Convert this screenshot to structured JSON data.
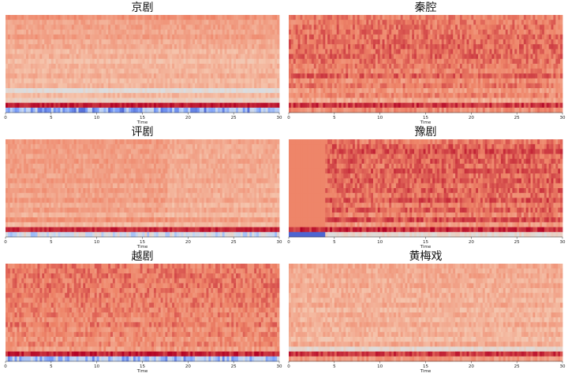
{
  "figure": {
    "colormap": "coolwarm",
    "colormap_stops": [
      "#3b4cc0",
      "#7b9ff9",
      "#c0d4f5",
      "#dddddd",
      "#f5c4ac",
      "#ee8468",
      "#b40426"
    ]
  },
  "chart_data": [
    {
      "type": "heatmap",
      "title": "京剧",
      "xlabel": "Time",
      "xlim": [
        0,
        30
      ],
      "xticks": [
        "0",
        "5",
        "10",
        "15",
        "20",
        "25",
        "30"
      ],
      "n_bands": 20,
      "band_base": [
        0.8,
        0.75,
        0.76,
        0.74,
        0.77,
        0.73,
        0.74,
        0.7,
        0.72,
        0.68,
        0.71,
        0.7,
        0.73,
        0.69,
        0.71,
        0.52,
        0.7,
        0.6,
        0.97,
        0.2
      ],
      "texture": 0.04
    },
    {
      "type": "heatmap",
      "title": "秦腔",
      "xlabel": "Time",
      "xlim": [
        0,
        30
      ],
      "xticks": [
        "0",
        "5",
        "10",
        "15",
        "20",
        "25",
        "30"
      ],
      "n_bands": 20,
      "band_base": [
        0.83,
        0.84,
        0.85,
        0.85,
        0.86,
        0.86,
        0.87,
        0.86,
        0.87,
        0.85,
        0.84,
        0.82,
        0.88,
        0.8,
        0.84,
        0.78,
        0.82,
        0.74,
        0.93,
        0.8
      ],
      "texture": 0.06
    },
    {
      "type": "heatmap",
      "title": "评剧",
      "xlabel": "Time",
      "xlim": [
        0,
        30
      ],
      "xticks": [
        "0",
        "5",
        "10",
        "15",
        "20",
        "25",
        "30"
      ],
      "n_bands": 20,
      "band_base": [
        0.78,
        0.76,
        0.77,
        0.75,
        0.78,
        0.76,
        0.77,
        0.75,
        0.78,
        0.74,
        0.77,
        0.74,
        0.78,
        0.73,
        0.77,
        0.72,
        0.8,
        0.7,
        0.95,
        0.38
      ],
      "texture": 0.04
    },
    {
      "type": "heatmap",
      "title": "豫剧",
      "xlabel": "Time",
      "xlim": [
        0,
        30
      ],
      "xticks": [
        "0",
        "5",
        "10",
        "15",
        "20",
        "25",
        "30"
      ],
      "n_bands": 20,
      "band_base": [
        0.84,
        0.88,
        0.9,
        0.87,
        0.88,
        0.86,
        0.89,
        0.86,
        0.88,
        0.86,
        0.88,
        0.85,
        0.89,
        0.84,
        0.88,
        0.82,
        0.9,
        0.78,
        0.95,
        0.55
      ],
      "texture": 0.06
    },
    {
      "type": "heatmap",
      "title": "越剧",
      "xlabel": "Time",
      "xlim": [
        0,
        30
      ],
      "xticks": [
        "0",
        "5",
        "10",
        "15",
        "20",
        "25",
        "30"
      ],
      "n_bands": 20,
      "band_base": [
        0.84,
        0.84,
        0.85,
        0.84,
        0.85,
        0.84,
        0.84,
        0.83,
        0.84,
        0.82,
        0.83,
        0.81,
        0.84,
        0.8,
        0.83,
        0.79,
        0.82,
        0.77,
        0.96,
        0.25
      ],
      "texture": 0.06
    },
    {
      "type": "heatmap",
      "title": "黄梅戏",
      "xlabel": "Time",
      "xlim": [
        0,
        30
      ],
      "xticks": [
        "0",
        "5",
        "10",
        "15",
        "20",
        "25",
        "30"
      ],
      "n_bands": 20,
      "band_base": [
        0.74,
        0.73,
        0.74,
        0.72,
        0.74,
        0.72,
        0.73,
        0.71,
        0.74,
        0.7,
        0.73,
        0.7,
        0.74,
        0.7,
        0.72,
        0.68,
        0.74,
        0.55,
        0.93,
        0.78
      ],
      "texture": 0.05
    }
  ]
}
